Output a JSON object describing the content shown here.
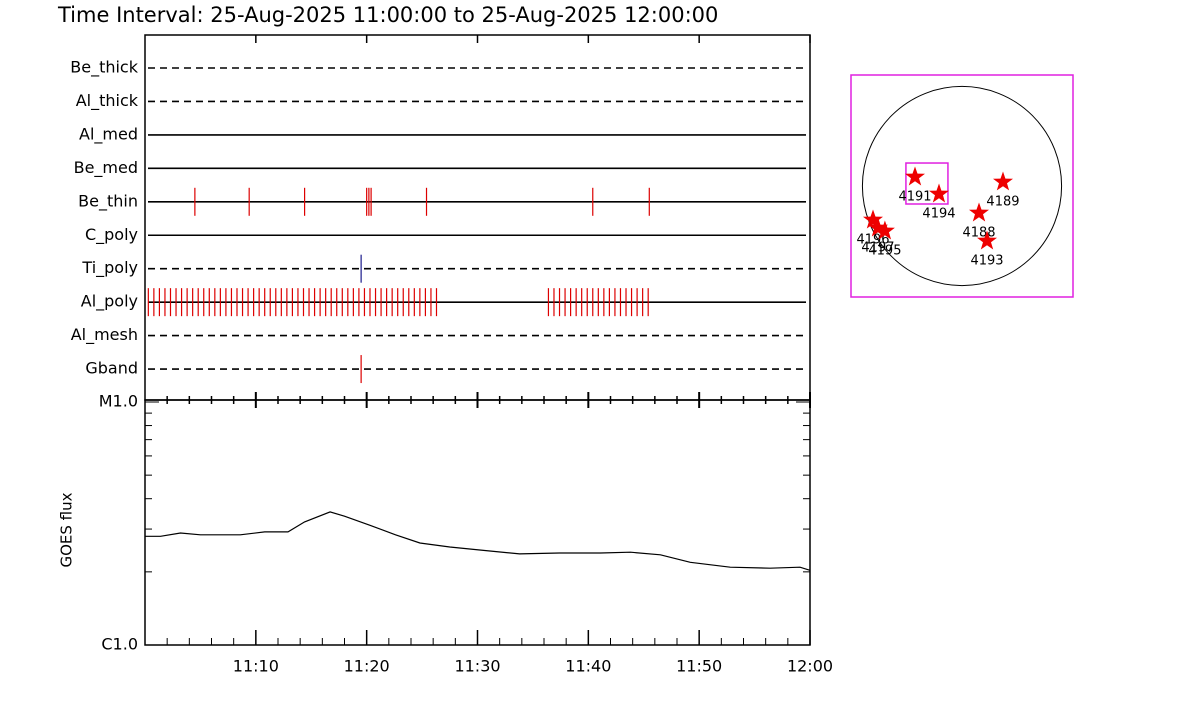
{
  "chart_data": [
    {
      "type": "event",
      "title": "Time Interval: 25-Aug-2025 11:00:00 to 25-Aug-2025 12:00:00",
      "xlim": [
        0,
        60
      ],
      "xticks": [
        {
          "value": 10,
          "label": "11:10"
        },
        {
          "value": 20,
          "label": "11:20"
        },
        {
          "value": 30,
          "label": "11:30"
        },
        {
          "value": 40,
          "label": "11:40"
        },
        {
          "value": 50,
          "label": "11:50"
        },
        {
          "value": 60,
          "label": "12:00"
        }
      ],
      "x_minor_ticks": [
        2,
        4,
        6,
        8,
        12,
        14,
        16,
        18,
        22,
        24,
        26,
        28,
        32,
        34,
        36,
        38,
        42,
        44,
        46,
        48,
        52,
        54,
        56,
        58
      ],
      "series": [
        {
          "name": "Be_thick",
          "line_style": "dashed",
          "color": "#dd0000",
          "values": []
        },
        {
          "name": "Al_thick",
          "line_style": "dashed",
          "color": "#dd0000",
          "values": []
        },
        {
          "name": "Al_med",
          "line_style": "solid",
          "color": "#dd0000",
          "values": []
        },
        {
          "name": "Be_med",
          "line_style": "solid",
          "color": "#dd0000",
          "values": []
        },
        {
          "name": "Be_thin",
          "line_style": "solid",
          "color": "#dd0000",
          "values": [
            4.5,
            9.4,
            14.4,
            20.0,
            20.2,
            20.4,
            25.4,
            40.4,
            45.5
          ]
        },
        {
          "name": "C_poly",
          "line_style": "solid",
          "color": "#dd0000",
          "values": []
        },
        {
          "name": "Ti_poly",
          "line_style": "dashed",
          "color": "#1c1c8c",
          "values": [
            19.5
          ]
        },
        {
          "name": "Al_poly",
          "line_style": "solid",
          "color": "#dd0000",
          "values": [
            0.3,
            0.8,
            1.3,
            1.8,
            2.3,
            2.8,
            3.3,
            3.8,
            4.3,
            4.8,
            5.3,
            5.8,
            6.3,
            6.8,
            7.3,
            7.8,
            8.3,
            8.8,
            9.3,
            9.8,
            10.3,
            10.8,
            11.3,
            11.8,
            12.3,
            12.8,
            13.3,
            13.8,
            14.3,
            14.8,
            15.3,
            15.8,
            16.3,
            16.8,
            17.3,
            17.8,
            18.3,
            18.8,
            19.3,
            19.8,
            20.3,
            20.8,
            21.3,
            21.8,
            22.3,
            22.8,
            23.3,
            23.8,
            24.3,
            24.8,
            25.3,
            25.8,
            26.3,
            36.4,
            36.9,
            37.4,
            37.9,
            38.4,
            38.9,
            39.4,
            39.9,
            40.4,
            40.9,
            41.4,
            41.9,
            42.4,
            42.9,
            43.4,
            43.9,
            44.4,
            44.9,
            45.4
          ]
        },
        {
          "name": "Al_mesh",
          "line_style": "dashed",
          "color": "#dd0000",
          "values": []
        },
        {
          "name": "Gband",
          "line_style": "dashed",
          "color": "#dd0000",
          "values": [
            19.5
          ]
        }
      ]
    },
    {
      "type": "line",
      "y_label": "GOES flux",
      "log_scale": true,
      "color": "#000000",
      "ylim": [
        1e-06,
        1e-05
      ],
      "yticks": [
        {
          "value": 1e-06,
          "label": "C1.0"
        },
        {
          "value": 1e-05,
          "label": "M1.0"
        }
      ],
      "y_minor_ticks": [
        2e-06,
        3e-06,
        4e-06,
        5e-06,
        6e-06,
        7e-06,
        8e-06,
        9e-06
      ],
      "x": [
        0,
        1.4,
        3.2,
        5,
        8.6,
        10.8,
        12.9,
        14.4,
        16.7,
        18,
        20.3,
        22.6,
        24.8,
        27.5,
        30.2,
        33.8,
        37.4,
        41.1,
        43.8,
        46.5,
        49.2,
        52.8,
        56.4,
        59.1,
        60
      ],
      "values": [
        2.8e-06,
        2.8e-06,
        2.89e-06,
        2.84e-06,
        2.84e-06,
        2.92e-06,
        2.92e-06,
        3.21e-06,
        3.53e-06,
        3.39e-06,
        3.11e-06,
        2.84e-06,
        2.63e-06,
        2.53e-06,
        2.46e-06,
        2.37e-06,
        2.39e-06,
        2.39e-06,
        2.41e-06,
        2.35e-06,
        2.19e-06,
        2.09e-06,
        2.07e-06,
        2.09e-06,
        2.03e-06
      ]
    },
    {
      "type": "scatter",
      "xlim": [
        -1070,
        1070
      ],
      "ylim": [
        -1070,
        1070
      ],
      "solar_radius": 960,
      "frame_color": "#e020e0",
      "marker_color": "#ee0000",
      "fov": {
        "xc": -338,
        "yc": 24,
        "width": 405,
        "height": 395
      },
      "regions": [
        {
          "name": "4191",
          "x": -453,
          "y": 87
        },
        {
          "name": "4194",
          "x": -222,
          "y": -77
        },
        {
          "name": "4189",
          "x": 395,
          "y": 39
        },
        {
          "name": "4188",
          "x": 164,
          "y": -260
        },
        {
          "name": "4193",
          "x": 241,
          "y": -530
        },
        {
          "name": "4196",
          "x": -858,
          "y": -328
        },
        {
          "name": "4197",
          "x": -810,
          "y": -405
        },
        {
          "name": "4195",
          "x": -743,
          "y": -434
        }
      ]
    }
  ]
}
